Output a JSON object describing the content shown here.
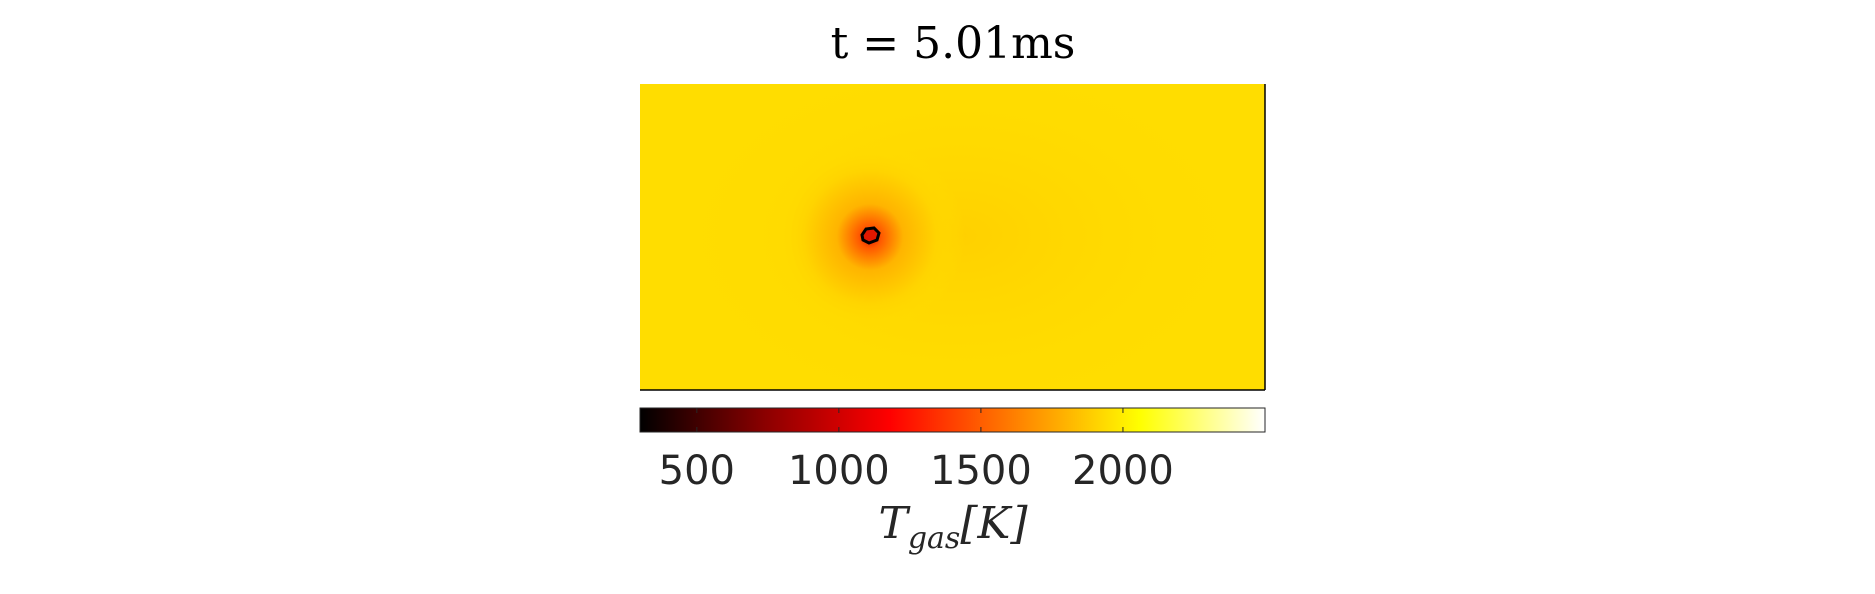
{
  "chart_data": {
    "type": "heatmap",
    "title": "t = 5.01ms",
    "field_description_colors": {
      "background": "#ffdd00",
      "hotspot_core": "#e01800",
      "contour": "#000000"
    },
    "colorbar": {
      "label_main": "T",
      "label_sub": "gas",
      "label_unit": "[K]",
      "range": [
        300,
        2500
      ],
      "ticks": [
        500,
        1000,
        1500,
        2000
      ],
      "tick_labels": [
        "500",
        "1000",
        "1500",
        "2000"
      ],
      "colormap": "hot",
      "colormap_stops": [
        "#000000",
        "#8b0000",
        "#ff0000",
        "#ff8000",
        "#ffff00",
        "#ffffff"
      ]
    },
    "grid": false
  }
}
